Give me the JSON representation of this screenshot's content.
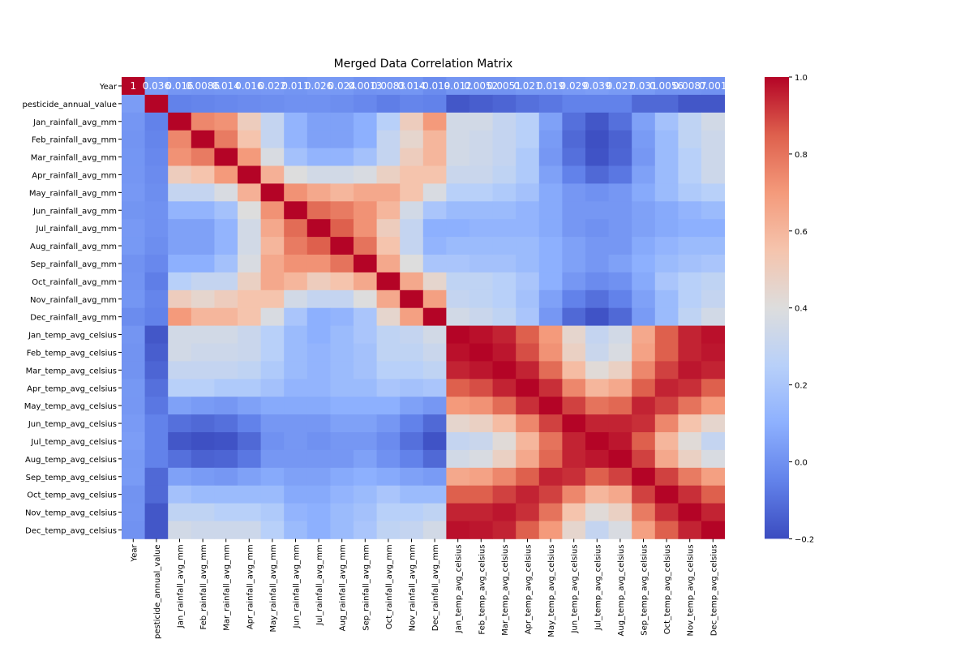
{
  "chart_data": {
    "type": "heatmap",
    "title": "Merged Data Correlation Matrix",
    "labels": [
      "Year",
      "pesticide_annual_value",
      "Jan_rainfall_avg_mm",
      "Feb_rainfall_avg_mm",
      "Mar_rainfall_avg_mm",
      "Apr_rainfall_avg_mm",
      "May_rainfall_avg_mm",
      "Jun_rainfall_avg_mm",
      "Jul_rainfall_avg_mm",
      "Aug_rainfall_avg_mm",
      "Sep_rainfall_avg_mm",
      "Oct_rainfall_avg_mm",
      "Nov_rainfall_avg_mm",
      "Dec_rainfall_avg_mm",
      "Jan_temp_avg_celsius",
      "Feb_temp_avg_celsius",
      "Mar_temp_avg_celsius",
      "Apr_temp_avg_celsius",
      "May_temp_avg_celsius",
      "Jun_temp_avg_celsius",
      "Jul_temp_avg_celsius",
      "Aug_temp_avg_celsius",
      "Sep_temp_avg_celsius",
      "Oct_temp_avg_celsius",
      "Nov_temp_avg_celsius",
      "Dec_temp_avg_celsius"
    ],
    "values": [
      [
        1,
        0.036,
        0.016,
        0.0086,
        0.014,
        0.016,
        0.022,
        0.011,
        0.026,
        0.024,
        0.0013,
        0.0083,
        0.014,
        -0.019,
        0.012,
        0.0052,
        0.0051,
        0.021,
        0.019,
        0.029,
        0.039,
        0.027,
        0.031,
        0.0056,
        0.0087,
        0.001
      ],
      [
        0.036,
        1,
        -0.05,
        -0.04,
        -0.03,
        -0.02,
        -0.01,
        0,
        0,
        -0.01,
        -0.03,
        -0.06,
        -0.04,
        -0.05,
        -0.17,
        -0.15,
        -0.13,
        -0.1,
        -0.08,
        -0.05,
        -0.05,
        -0.05,
        -0.12,
        -0.12,
        -0.17,
        -0.17
      ],
      [
        0.016,
        -0.05,
        1,
        0.75,
        0.72,
        0.5,
        0.3,
        0.12,
        0.05,
        0.05,
        0.1,
        0.25,
        0.5,
        0.7,
        0.35,
        0.35,
        0.3,
        0.25,
        0.05,
        -0.1,
        -0.17,
        -0.1,
        0.05,
        0.18,
        0.28,
        0.35
      ],
      [
        0.0086,
        -0.04,
        0.75,
        1,
        0.78,
        0.55,
        0.3,
        0.12,
        0.05,
        0.05,
        0.1,
        0.3,
        0.45,
        0.6,
        0.35,
        0.33,
        0.3,
        0.25,
        0.03,
        -0.12,
        -0.19,
        -0.14,
        0.03,
        0.15,
        0.28,
        0.33
      ],
      [
        0.014,
        -0.03,
        0.72,
        0.78,
        1,
        0.7,
        0.38,
        0.18,
        0.12,
        0.12,
        0.18,
        0.3,
        0.5,
        0.6,
        0.35,
        0.33,
        0.3,
        0.22,
        0.02,
        -0.1,
        -0.18,
        -0.13,
        0.02,
        0.15,
        0.25,
        0.33
      ],
      [
        0.016,
        -0.02,
        0.5,
        0.55,
        0.7,
        1,
        0.62,
        0.4,
        0.35,
        0.35,
        0.38,
        0.48,
        0.55,
        0.55,
        0.32,
        0.32,
        0.28,
        0.22,
        0.05,
        -0.05,
        -0.12,
        -0.08,
        0.05,
        0.15,
        0.25,
        0.33
      ],
      [
        0.022,
        -0.01,
        0.3,
        0.3,
        0.38,
        0.62,
        1,
        0.72,
        0.65,
        0.6,
        0.65,
        0.65,
        0.55,
        0.38,
        0.25,
        0.25,
        0.22,
        0.18,
        0.08,
        0.02,
        0,
        0.02,
        0.08,
        0.15,
        0.22,
        0.25
      ],
      [
        0.011,
        0,
        0.12,
        0.12,
        0.18,
        0.4,
        0.72,
        1,
        0.82,
        0.78,
        0.72,
        0.6,
        0.35,
        0.2,
        0.15,
        0.15,
        0.15,
        0.12,
        0.08,
        0.02,
        0.02,
        0.02,
        0.05,
        0.08,
        0.12,
        0.15
      ],
      [
        0.026,
        0,
        0.05,
        0.05,
        0.12,
        0.35,
        0.65,
        0.82,
        1,
        0.85,
        0.72,
        0.5,
        0.3,
        0.1,
        0.1,
        0.12,
        0.12,
        0.12,
        0.08,
        0.02,
        0,
        0.02,
        0.05,
        0.08,
        0.1,
        0.1
      ],
      [
        0.024,
        -0.01,
        0.05,
        0.05,
        0.12,
        0.35,
        0.6,
        0.78,
        0.85,
        1,
        0.8,
        0.55,
        0.3,
        0.12,
        0.15,
        0.15,
        0.15,
        0.15,
        0.1,
        0.05,
        0.02,
        0.02,
        0.08,
        0.12,
        0.15,
        0.15
      ],
      [
        0.0013,
        -0.03,
        0.1,
        0.1,
        0.18,
        0.38,
        0.65,
        0.72,
        0.72,
        0.8,
        1,
        0.65,
        0.4,
        0.2,
        0.2,
        0.18,
        0.18,
        0.15,
        0.1,
        0.05,
        0.02,
        0.05,
        0.1,
        0.15,
        0.18,
        0.2
      ],
      [
        0.0083,
        -0.06,
        0.25,
        0.3,
        0.3,
        0.48,
        0.65,
        0.6,
        0.5,
        0.55,
        0.65,
        1,
        0.65,
        0.45,
        0.28,
        0.28,
        0.25,
        0.2,
        0.1,
        0.02,
        -0.02,
        0,
        0.08,
        0.2,
        0.25,
        0.28
      ],
      [
        0.014,
        -0.04,
        0.5,
        0.45,
        0.5,
        0.55,
        0.55,
        0.35,
        0.3,
        0.3,
        0.4,
        0.65,
        1,
        0.68,
        0.3,
        0.28,
        0.25,
        0.18,
        0.05,
        -0.05,
        -0.1,
        -0.05,
        0.05,
        0.15,
        0.25,
        0.3
      ],
      [
        -0.019,
        -0.05,
        0.7,
        0.6,
        0.6,
        0.55,
        0.38,
        0.2,
        0.1,
        0.12,
        0.2,
        0.45,
        0.68,
        1,
        0.35,
        0.32,
        0.28,
        0.2,
        0.02,
        -0.12,
        -0.18,
        -0.12,
        0.03,
        0.15,
        0.28,
        0.35
      ],
      [
        0.012,
        -0.17,
        0.35,
        0.35,
        0.35,
        0.32,
        0.25,
        0.15,
        0.1,
        0.15,
        0.2,
        0.28,
        0.3,
        0.35,
        1,
        0.98,
        0.95,
        0.85,
        0.7,
        0.45,
        0.3,
        0.35,
        0.65,
        0.85,
        0.95,
        0.98
      ],
      [
        0.0052,
        -0.15,
        0.35,
        0.33,
        0.33,
        0.32,
        0.25,
        0.15,
        0.12,
        0.15,
        0.18,
        0.28,
        0.28,
        0.32,
        0.98,
        1,
        0.97,
        0.88,
        0.72,
        0.48,
        0.32,
        0.38,
        0.67,
        0.85,
        0.95,
        0.97
      ],
      [
        0.0051,
        -0.13,
        0.3,
        0.3,
        0.3,
        0.28,
        0.22,
        0.15,
        0.12,
        0.15,
        0.18,
        0.25,
        0.25,
        0.28,
        0.95,
        0.97,
        1,
        0.95,
        0.82,
        0.58,
        0.42,
        0.48,
        0.75,
        0.9,
        0.97,
        0.95
      ],
      [
        0.021,
        -0.1,
        0.25,
        0.25,
        0.22,
        0.22,
        0.18,
        0.12,
        0.12,
        0.15,
        0.15,
        0.2,
        0.18,
        0.2,
        0.85,
        0.88,
        0.95,
        1,
        0.93,
        0.75,
        0.6,
        0.65,
        0.85,
        0.95,
        0.93,
        0.85
      ],
      [
        0.019,
        -0.08,
        0.05,
        0.03,
        0.02,
        0.05,
        0.08,
        0.08,
        0.08,
        0.1,
        0.1,
        0.1,
        0.05,
        0.02,
        0.7,
        0.72,
        0.82,
        0.93,
        1,
        0.9,
        0.8,
        0.83,
        0.95,
        0.9,
        0.8,
        0.7
      ],
      [
        0.029,
        -0.05,
        -0.1,
        -0.12,
        -0.1,
        -0.05,
        0.02,
        0.02,
        0.02,
        0.05,
        0.05,
        0.02,
        -0.05,
        -0.12,
        0.45,
        0.48,
        0.58,
        0.75,
        0.9,
        1,
        0.95,
        0.95,
        0.93,
        0.75,
        0.55,
        0.45
      ],
      [
        0.039,
        -0.05,
        -0.17,
        -0.19,
        -0.18,
        -0.12,
        0,
        0.02,
        0,
        0.02,
        0.02,
        -0.02,
        -0.1,
        -0.18,
        0.3,
        0.32,
        0.42,
        0.6,
        0.8,
        0.95,
        1,
        0.97,
        0.85,
        0.6,
        0.42,
        0.3
      ],
      [
        0.027,
        -0.05,
        -0.1,
        -0.14,
        -0.13,
        -0.08,
        0.02,
        0.02,
        0.02,
        0.02,
        0.05,
        0,
        -0.05,
        -0.12,
        0.35,
        0.38,
        0.48,
        0.65,
        0.83,
        0.95,
        0.97,
        1,
        0.9,
        0.65,
        0.48,
        0.38
      ],
      [
        0.031,
        -0.12,
        0.05,
        0.03,
        0.02,
        0.05,
        0.08,
        0.05,
        0.05,
        0.08,
        0.1,
        0.08,
        0.05,
        0.03,
        0.65,
        0.67,
        0.75,
        0.85,
        0.95,
        0.93,
        0.85,
        0.9,
        1,
        0.9,
        0.78,
        0.68
      ],
      [
        0.0056,
        -0.12,
        0.18,
        0.15,
        0.15,
        0.15,
        0.15,
        0.08,
        0.08,
        0.12,
        0.15,
        0.2,
        0.15,
        0.15,
        0.85,
        0.85,
        0.9,
        0.95,
        0.9,
        0.75,
        0.6,
        0.65,
        0.9,
        1,
        0.93,
        0.85
      ],
      [
        0.0087,
        -0.17,
        0.28,
        0.28,
        0.25,
        0.25,
        0.22,
        0.12,
        0.1,
        0.15,
        0.18,
        0.25,
        0.25,
        0.28,
        0.95,
        0.95,
        0.97,
        0.93,
        0.8,
        0.55,
        0.42,
        0.48,
        0.78,
        0.93,
        1,
        0.95
      ],
      [
        0.001,
        -0.17,
        0.35,
        0.33,
        0.33,
        0.33,
        0.25,
        0.15,
        0.1,
        0.15,
        0.2,
        0.28,
        0.3,
        0.35,
        0.98,
        0.97,
        0.95,
        0.85,
        0.7,
        0.45,
        0.3,
        0.38,
        0.68,
        0.85,
        0.95,
        1
      ]
    ],
    "colormap": "coolwarm",
    "clim": [
      -0.2,
      1
    ],
    "colorbar_ticks": [
      {
        "value": -0.2,
        "label": "−0.2"
      },
      {
        "value": 0,
        "label": "0.0"
      },
      0.2,
      0.4,
      0.6,
      0.8,
      {
        "value": 1,
        "label": "1.0"
      }
    ],
    "annotated_rows": [
      0
    ]
  }
}
